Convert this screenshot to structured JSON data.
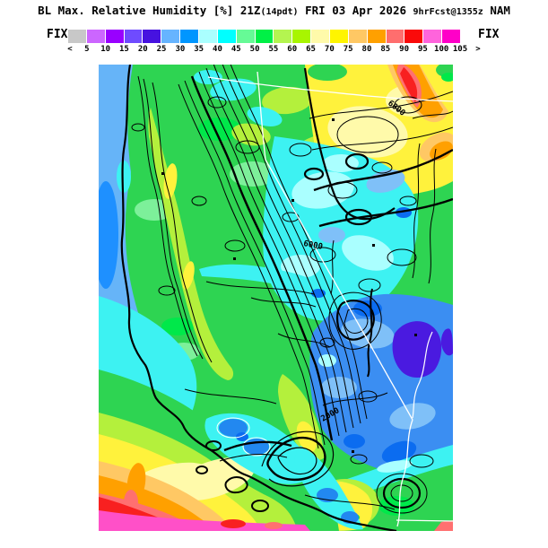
{
  "title": {
    "part1": "BL Max. Relative Humidity [%] 21Z",
    "part1_small": "(14pdt)",
    "part2": " FRI 03 Apr 2026 ",
    "part2_small": "9hrFcst@1355z",
    "part3": " NAM"
  },
  "colorbar": {
    "left_label": "FIX",
    "right_label": "FIX",
    "unit": "%",
    "colors": [
      "#c8c8c8",
      "#cc66ff",
      "#9900ff",
      "#6f4bff",
      "#4612e0",
      "#66b4ff",
      "#0096ff",
      "#aaffff",
      "#00ffff",
      "#66fa96",
      "#00f046",
      "#b4f550",
      "#a8f500",
      "#fffaaa",
      "#fff500",
      "#ffc864",
      "#ffa000",
      "#ff6e6e",
      "#fa0a0a",
      "#ff64dc",
      "#ff00c8"
    ],
    "ticks": [
      "<",
      "5",
      "10",
      "15",
      "20",
      "25",
      "30",
      "35",
      "40",
      "45",
      "50",
      "55",
      "60",
      "65",
      "70",
      "75",
      "80",
      "85",
      "90",
      "95",
      "100",
      "105",
      ">"
    ]
  },
  "map": {
    "contour_labels": [
      {
        "text": "6000"
      },
      {
        "text": "6000"
      },
      {
        "text": "2000"
      }
    ]
  },
  "palette": {
    "ocean_blue": "#66b4f8",
    "deep_blue": "#0b6cf0",
    "cyan": "#3df2f2",
    "green": "#2ed452",
    "yellow": "#fff23c",
    "orange": "#ffa000",
    "red": "#f82020",
    "magenta": "#ff50c8",
    "indigo": "#4a1ae0"
  }
}
